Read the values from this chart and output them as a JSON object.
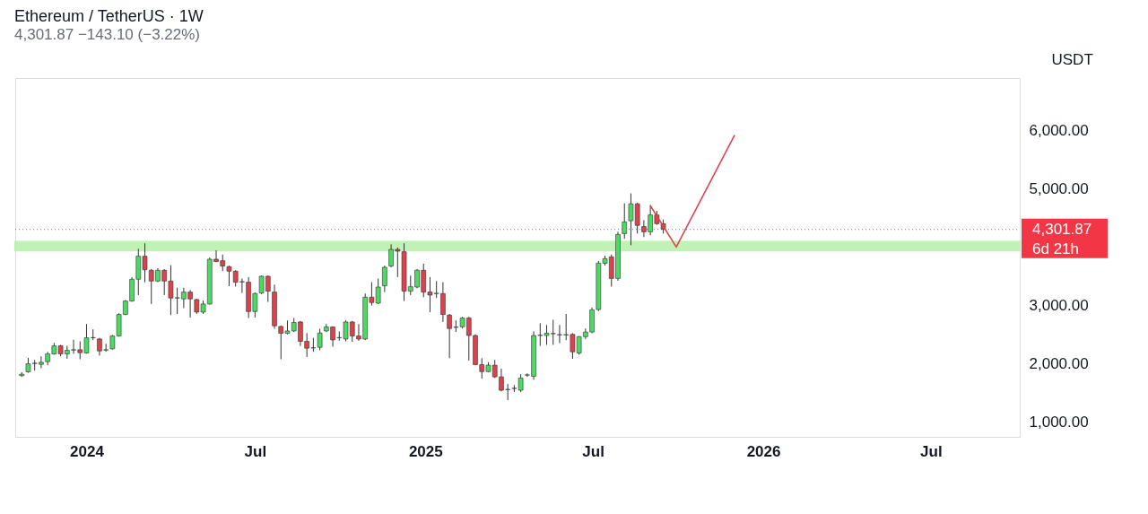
{
  "chart_data": {
    "type": "candlestick",
    "title": "Ethereum / TetherUS · 1W",
    "subtitle": "4,301.87  −143.10 (−3.22%)",
    "ylabel": "USDT",
    "x": [
      "2023-10-23",
      "2023-10-30",
      "2023-11-06",
      "2023-11-13",
      "2023-11-20",
      "2023-11-27",
      "2023-12-04",
      "2023-12-11",
      "2023-12-18",
      "2023-12-25",
      "2024-01-01",
      "2024-01-08",
      "2024-01-15",
      "2024-01-22",
      "2024-01-29",
      "2024-02-05",
      "2024-02-12",
      "2024-02-19",
      "2024-02-26",
      "2024-03-04",
      "2024-03-11",
      "2024-03-18",
      "2024-03-25",
      "2024-04-01",
      "2024-04-08",
      "2024-04-15",
      "2024-04-22",
      "2024-04-29",
      "2024-05-06",
      "2024-05-13",
      "2024-05-20",
      "2024-05-27",
      "2024-06-03",
      "2024-06-10",
      "2024-06-17",
      "2024-06-24",
      "2024-07-01",
      "2024-07-08",
      "2024-07-15",
      "2024-07-22",
      "2024-07-29",
      "2024-08-05",
      "2024-08-12",
      "2024-08-19",
      "2024-08-26",
      "2024-09-02",
      "2024-09-09",
      "2024-09-16",
      "2024-09-23",
      "2024-09-30",
      "2024-10-07",
      "2024-10-14",
      "2024-10-21",
      "2024-10-28",
      "2024-11-04",
      "2024-11-11",
      "2024-11-18",
      "2024-11-25",
      "2024-12-02",
      "2024-12-09",
      "2024-12-16",
      "2024-12-23",
      "2024-12-30",
      "2025-01-06",
      "2025-01-13",
      "2025-01-20",
      "2025-01-27",
      "2025-02-03",
      "2025-02-10",
      "2025-02-17",
      "2025-02-24",
      "2025-03-03",
      "2025-03-10",
      "2025-03-17",
      "2025-03-24",
      "2025-03-31",
      "2025-04-07",
      "2025-04-14",
      "2025-04-21",
      "2025-04-28",
      "2025-05-05",
      "2025-05-12",
      "2025-05-19",
      "2025-05-26",
      "2025-06-02",
      "2025-06-09",
      "2025-06-16",
      "2025-06-23",
      "2025-06-30",
      "2025-07-07",
      "2025-07-14",
      "2025-07-21",
      "2025-07-28",
      "2025-08-04",
      "2025-08-11",
      "2025-08-18",
      "2025-08-25",
      "2025-09-01",
      "2025-09-08",
      "2025-09-15"
    ],
    "ohlc": [
      [
        1790,
        1850,
        1770,
        1815
      ],
      [
        1857,
        2097,
        1840,
        1995
      ],
      [
        2000,
        2060,
        1877,
        2005
      ],
      [
        1985,
        2123,
        1918,
        2020
      ],
      [
        2031,
        2200,
        1969,
        2164
      ],
      [
        2164,
        2354,
        2150,
        2303
      ],
      [
        2303,
        2320,
        2123,
        2164
      ],
      [
        2164,
        2303,
        2082,
        2226
      ],
      [
        2230,
        2405,
        2164,
        2236
      ],
      [
        2236,
        2380,
        2072,
        2185
      ],
      [
        2180,
        2677,
        2170,
        2441
      ],
      [
        2441,
        2585,
        2400,
        2445
      ],
      [
        2420,
        2440,
        2134,
        2215
      ],
      [
        2230,
        2338,
        2200,
        2236
      ],
      [
        2251,
        2490,
        2240,
        2472
      ],
      [
        2472,
        2860,
        2460,
        2841
      ],
      [
        2841,
        3090,
        2830,
        3072
      ],
      [
        3072,
        3482,
        3060,
        3446
      ],
      [
        3446,
        3969,
        3174,
        3841
      ],
      [
        3841,
        4062,
        3395,
        3610
      ],
      [
        3600,
        3620,
        3021,
        3415
      ],
      [
        3415,
        3636,
        3395,
        3600
      ],
      [
        3600,
        3620,
        3174,
        3415
      ],
      [
        3415,
        3687,
        2831,
        3123
      ],
      [
        3123,
        3303,
        2850,
        3128
      ],
      [
        3108,
        3300,
        2950,
        3226
      ],
      [
        3226,
        3260,
        2790,
        3108
      ],
      [
        3097,
        3110,
        2851,
        2882
      ],
      [
        2882,
        3080,
        2851,
        3021
      ],
      [
        3021,
        3820,
        3010,
        3790
      ],
      [
        3790,
        3943,
        3740,
        3749
      ],
      [
        3764,
        3870,
        3585,
        3672
      ],
      [
        3662,
        3680,
        3328,
        3585
      ],
      [
        3585,
        3600,
        3320,
        3395
      ],
      [
        3400,
        3457,
        3210,
        3405
      ],
      [
        3395,
        3482,
        2780,
        2892
      ],
      [
        2892,
        3220,
        2790,
        3200
      ],
      [
        3210,
        3510,
        3190,
        3497
      ],
      [
        3497,
        3510,
        3057,
        3242
      ],
      [
        3226,
        3354,
        2595,
        2646
      ],
      [
        2635,
        2650,
        2072,
        2518
      ],
      [
        2518,
        2738,
        2500,
        2558
      ],
      [
        2558,
        2780,
        2540,
        2703
      ],
      [
        2712,
        2730,
        2300,
        2380
      ],
      [
        2380,
        2523,
        2112,
        2262
      ],
      [
        2266,
        2440,
        2200,
        2270
      ],
      [
        2277,
        2595,
        2226,
        2523
      ],
      [
        2558,
        2677,
        2540,
        2626
      ],
      [
        2626,
        2640,
        2288,
        2405
      ],
      [
        2441,
        2549,
        2390,
        2445
      ],
      [
        2420,
        2740,
        2380,
        2712
      ],
      [
        2712,
        2730,
        2370,
        2472
      ],
      [
        2472,
        2677,
        2390,
        2420
      ],
      [
        2420,
        3200,
        2400,
        3138
      ],
      [
        3138,
        3395,
        2995,
        3046
      ],
      [
        3035,
        3457,
        3020,
        3312
      ],
      [
        3333,
        3680,
        3226,
        3651
      ],
      [
        3672,
        4046,
        3650,
        3958
      ],
      [
        3958,
        3990,
        3482,
        3928
      ],
      [
        3918,
        4062,
        3072,
        3242
      ],
      [
        3242,
        3508,
        3174,
        3318
      ],
      [
        3312,
        3620,
        3290,
        3600
      ],
      [
        3600,
        3713,
        3138,
        3226
      ],
      [
        3226,
        3482,
        2882,
        3174
      ],
      [
        3200,
        3415,
        3123,
        3205
      ],
      [
        3200,
        3395,
        2712,
        2841
      ],
      [
        2830,
        2850,
        2090,
        2600
      ],
      [
        2620,
        2740,
        2540,
        2625
      ],
      [
        2630,
        2800,
        2600,
        2780
      ],
      [
        2780,
        2800,
        2050,
        2480
      ],
      [
        2480,
        2500,
        1970,
        1980
      ],
      [
        1980,
        2090,
        1740,
        1860
      ],
      [
        1860,
        2020,
        1850,
        1970
      ],
      [
        1970,
        2060,
        1750,
        1770
      ],
      [
        1770,
        1910,
        1520,
        1540
      ],
      [
        1550,
        1650,
        1370,
        1555
      ],
      [
        1570,
        1630,
        1510,
        1575
      ],
      [
        1540,
        1815,
        1510,
        1750
      ],
      [
        1800,
        1830,
        1770,
        1805
      ],
      [
        1780,
        2550,
        1720,
        2480
      ],
      [
        2480,
        2690,
        2300,
        2485
      ],
      [
        2480,
        2660,
        2320,
        2520
      ],
      [
        2510,
        2750,
        2320,
        2515
      ],
      [
        2490,
        2660,
        2350,
        2495
      ],
      [
        2490,
        2850,
        2400,
        2495
      ],
      [
        2500,
        2520,
        2080,
        2200
      ],
      [
        2180,
        2470,
        2150,
        2460
      ],
      [
        2460,
        2600,
        2420,
        2540
      ],
      [
        2540,
        2960,
        2520,
        2920
      ],
      [
        2926,
        3760,
        2900,
        3723
      ],
      [
        3720,
        3850,
        3680,
        3800
      ],
      [
        3830,
        3870,
        3320,
        3460
      ],
      [
        3460,
        4260,
        3420,
        4215
      ],
      [
        4230,
        4750,
        4140,
        4430
      ],
      [
        4450,
        4920,
        4030,
        4740
      ],
      [
        4740,
        4760,
        4230,
        4370
      ],
      [
        4350,
        4460,
        4170,
        4260
      ],
      [
        4260,
        4720,
        4200,
        4550
      ],
      [
        4550,
        4620,
        4380,
        4400
      ],
      [
        4400,
        4470,
        4230,
        4301.87
      ]
    ],
    "colors": [
      "#4cd964",
      "#4cd964",
      "#4cd964",
      "#4cd964",
      "#4cd964",
      "#4cd964",
      "#d9434b",
      "#4cd964",
      "#4cd964",
      "#d9434b",
      "#4cd964",
      "#4cd964",
      "#d9434b",
      "#4cd964",
      "#4cd964",
      "#4cd964",
      "#4cd964",
      "#4cd964",
      "#4cd964",
      "#d9434b",
      "#d9434b",
      "#4cd964",
      "#d9434b",
      "#d9434b",
      "#4cd964",
      "#4cd964",
      "#d9434b",
      "#d9434b",
      "#4cd964",
      "#4cd964",
      "#d9434b",
      "#d9434b",
      "#d9434b",
      "#d9434b",
      "#4cd964",
      "#d9434b",
      "#4cd964",
      "#4cd964",
      "#d9434b",
      "#d9434b",
      "#d9434b",
      "#4cd964",
      "#4cd964",
      "#d9434b",
      "#d9434b",
      "#4cd964",
      "#4cd964",
      "#4cd964",
      "#d9434b",
      "#4cd964",
      "#4cd964",
      "#d9434b",
      "#d9434b",
      "#4cd964",
      "#d9434b",
      "#4cd964",
      "#4cd964",
      "#4cd964",
      "#d9434b",
      "#d9434b",
      "#4cd964",
      "#4cd964",
      "#d9434b",
      "#d9434b",
      "#4cd964",
      "#d9434b",
      "#d9434b",
      "#4cd964",
      "#4cd964",
      "#d9434b",
      "#d9434b",
      "#d9434b",
      "#4cd964",
      "#d9434b",
      "#d9434b",
      "#4cd964",
      "#4cd964",
      "#4cd964",
      "#4cd964",
      "#4cd964",
      "#4cd964",
      "#4cd964",
      "#4cd964",
      "#4cd964",
      "#4cd964",
      "#d9434b",
      "#4cd964",
      "#4cd964",
      "#4cd964",
      "#4cd964",
      "#4cd964",
      "#d9434b",
      "#4cd964",
      "#4cd964",
      "#4cd964",
      "#d9434b",
      "#d9434b",
      "#4cd964",
      "#d9434b",
      "#d9434b"
    ],
    "series": [
      {
        "type": "line",
        "color": "#e0434f",
        "x": [
          "2025-09-01",
          "2025-09-29",
          "2025-12-01"
        ],
        "values": [
          4710,
          4000,
          5920
        ]
      }
    ],
    "bands": [
      {
        "axis": "y",
        "from": 3940,
        "to": 4090,
        "color": "#b7f0a9"
      }
    ],
    "ref_lines": [
      {
        "axis": "y",
        "value": 4301.87,
        "label": "4,301.87",
        "color": "#f23645",
        "line_style": "dotted"
      }
    ],
    "annotations": [
      "6d 21h"
    ],
    "xlim": [
      "2023-10-16",
      "2026-10-05"
    ],
    "xticks": [
      {
        "value": "2024-01-01",
        "label": "2024"
      },
      {
        "value": "2024-07-01",
        "label": "Jul"
      },
      {
        "value": "2025-01-01",
        "label": "2025"
      },
      {
        "value": "2025-07-01",
        "label": "Jul"
      },
      {
        "value": "2026-01-01",
        "label": "2026"
      },
      {
        "value": "2026-07-01",
        "label": "Jul"
      }
    ],
    "ylim": [
      740,
      6900
    ],
    "yticks": [
      {
        "value": 1000,
        "label": "1,000.00"
      },
      {
        "value": 2000,
        "label": "2,000.00"
      },
      {
        "value": 3000,
        "label": "3,000.00"
      },
      {
        "value": 5000,
        "label": "5,000.00"
      },
      {
        "value": 6000,
        "label": "6,000.00"
      }
    ],
    "grid": false
  }
}
